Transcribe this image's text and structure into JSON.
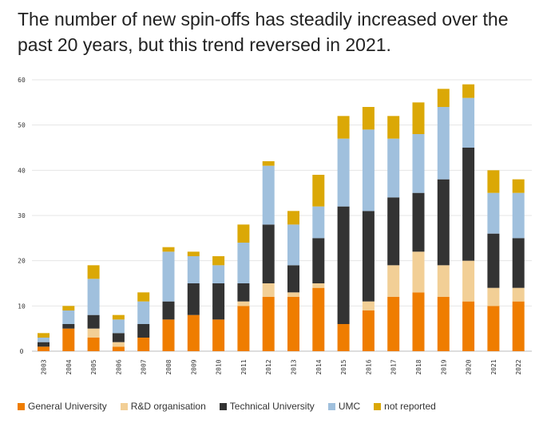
{
  "title": "The number of new spin-offs has steadily increased over the past 20 years, but this trend reversed in 2021.",
  "chart_data": {
    "type": "bar",
    "stacked": true,
    "categories": [
      "2003",
      "2004",
      "2005",
      "2006",
      "2007",
      "2008",
      "2009",
      "2010",
      "2011",
      "2012",
      "2013",
      "2014",
      "2015",
      "2016",
      "2017",
      "2018",
      "2019",
      "2020",
      "2021",
      "2022"
    ],
    "series": [
      {
        "name": "General University",
        "color": "#ef7d00",
        "values": [
          1,
          5,
          3,
          1,
          3,
          7,
          8,
          7,
          10,
          12,
          12,
          14,
          6,
          9,
          12,
          13,
          12,
          11,
          10,
          11
        ]
      },
      {
        "name": "R&D organisation",
        "color": "#f2cf96",
        "values": [
          0,
          0,
          2,
          1,
          0,
          0,
          0,
          0,
          1,
          3,
          1,
          1,
          0,
          2,
          7,
          9,
          7,
          9,
          4,
          3
        ]
      },
      {
        "name": "Technical University",
        "color": "#333333",
        "values": [
          1,
          1,
          3,
          2,
          3,
          4,
          7,
          8,
          4,
          13,
          6,
          10,
          26,
          20,
          15,
          13,
          19,
          25,
          12,
          11
        ]
      },
      {
        "name": "UMC",
        "color": "#a0c0dd",
        "values": [
          1,
          3,
          8,
          3,
          5,
          11,
          6,
          4,
          9,
          13,
          9,
          7,
          15,
          18,
          13,
          13,
          16,
          11,
          9,
          10
        ]
      },
      {
        "name": "not reported",
        "color": "#dba806",
        "values": [
          1,
          1,
          3,
          1,
          2,
          1,
          1,
          2,
          4,
          1,
          3,
          7,
          5,
          5,
          5,
          7,
          4,
          3,
          5,
          3
        ]
      }
    ],
    "yticks": [
      0,
      10,
      20,
      30,
      40,
      50,
      60
    ],
    "ylim": [
      0,
      60
    ],
    "grid": true,
    "legend_position": "bottom"
  }
}
